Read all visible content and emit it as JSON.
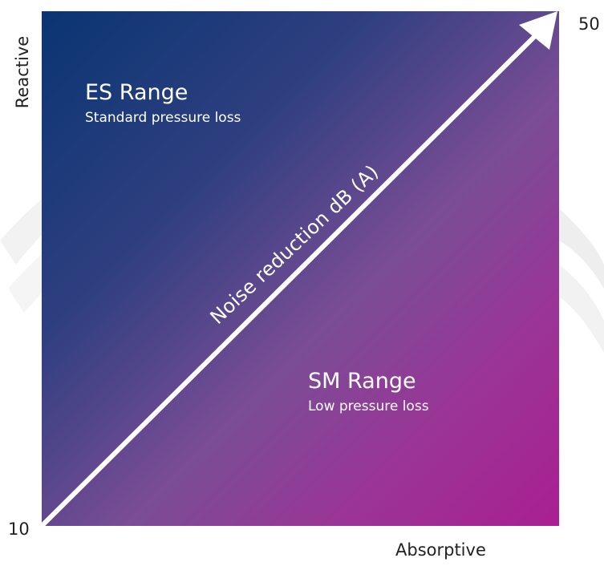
{
  "diagram": {
    "zones": {
      "es": {
        "title": "ES Range",
        "subtitle": "Standard pressure loss"
      },
      "sm": {
        "title": "SM Range",
        "subtitle": "Low pressure loss"
      }
    },
    "arrow_label": "Noise reduction dB (A)",
    "scale": {
      "min": "10",
      "max": "50"
    },
    "axes": {
      "x_label": "Absorptive",
      "y_label": "Reactive"
    },
    "colors": {
      "top_left": "#0a3572",
      "bottom_right": "#a91f92",
      "arrow": "#ffffff",
      "text": "#222222"
    }
  }
}
